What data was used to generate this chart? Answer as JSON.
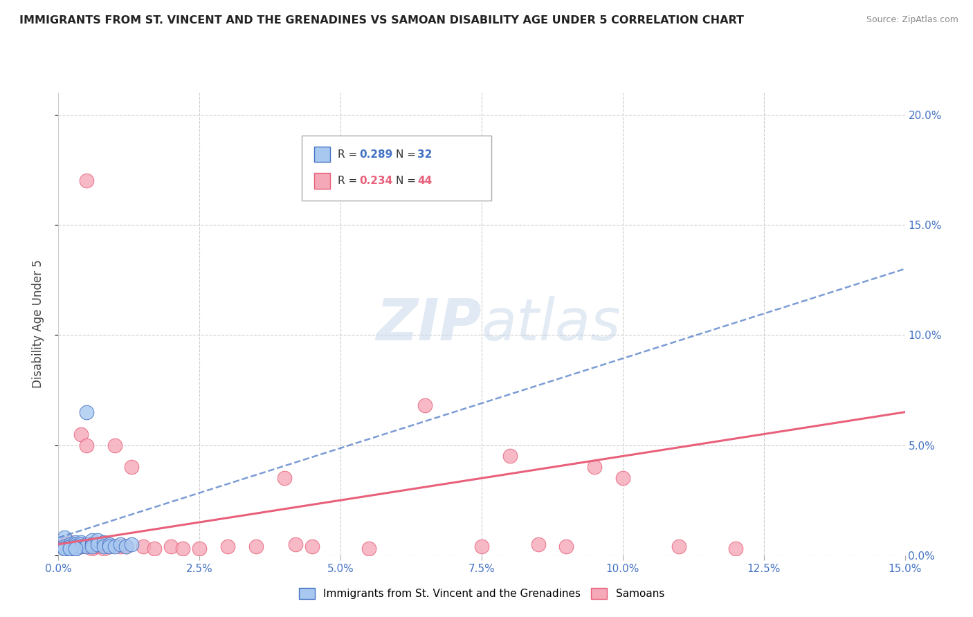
{
  "title": "IMMIGRANTS FROM ST. VINCENT AND THE GRENADINES VS SAMOAN DISABILITY AGE UNDER 5 CORRELATION CHART",
  "source": "Source: ZipAtlas.com",
  "ylabel": "Disability Age Under 5",
  "legend_r1": "R = 0.289",
  "legend_n1": "N = 32",
  "legend_r2": "R = 0.234",
  "legend_n2": "N = 44",
  "legend_label1": "Immigrants from St. Vincent and the Grenadines",
  "legend_label2": "Samoans",
  "color_blue": "#a8c8f0",
  "color_pink": "#f5a8b8",
  "color_blue_line": "#4472c4",
  "color_pink_line": "#e8607a",
  "color_blue_text": "#4472c4",
  "color_pink_text": "#e8607a",
  "blue_scatter_x": [
    0.001,
    0.001,
    0.001,
    0.002,
    0.002,
    0.002,
    0.003,
    0.003,
    0.003,
    0.003,
    0.004,
    0.004,
    0.004,
    0.005,
    0.005,
    0.005,
    0.006,
    0.006,
    0.006,
    0.007,
    0.007,
    0.008,
    0.008,
    0.009,
    0.009,
    0.01,
    0.011,
    0.012,
    0.013,
    0.001,
    0.002,
    0.003
  ],
  "blue_scatter_y": [
    0.008,
    0.004,
    0.003,
    0.005,
    0.004,
    0.003,
    0.006,
    0.005,
    0.004,
    0.003,
    0.006,
    0.005,
    0.004,
    0.065,
    0.005,
    0.004,
    0.007,
    0.005,
    0.004,
    0.007,
    0.005,
    0.006,
    0.004,
    0.005,
    0.004,
    0.004,
    0.005,
    0.004,
    0.005,
    0.003,
    0.003,
    0.003
  ],
  "pink_scatter_x": [
    0.001,
    0.001,
    0.001,
    0.002,
    0.002,
    0.003,
    0.003,
    0.004,
    0.004,
    0.005,
    0.005,
    0.006,
    0.006,
    0.007,
    0.007,
    0.008,
    0.009,
    0.01,
    0.011,
    0.013,
    0.015,
    0.017,
    0.02,
    0.022,
    0.025,
    0.03,
    0.035,
    0.04,
    0.042,
    0.045,
    0.055,
    0.065,
    0.075,
    0.08,
    0.085,
    0.09,
    0.095,
    0.1,
    0.11,
    0.12,
    0.005,
    0.008,
    0.012,
    0.002
  ],
  "pink_scatter_y": [
    0.005,
    0.004,
    0.003,
    0.006,
    0.004,
    0.005,
    0.004,
    0.055,
    0.004,
    0.05,
    0.004,
    0.004,
    0.003,
    0.005,
    0.004,
    0.003,
    0.004,
    0.05,
    0.004,
    0.04,
    0.004,
    0.003,
    0.004,
    0.003,
    0.003,
    0.004,
    0.004,
    0.035,
    0.005,
    0.004,
    0.003,
    0.068,
    0.004,
    0.045,
    0.005,
    0.004,
    0.04,
    0.035,
    0.004,
    0.003,
    0.17,
    0.005,
    0.004,
    0.004
  ],
  "blue_trend_x": [
    0.0,
    0.15
  ],
  "blue_trend_y": [
    0.008,
    0.13
  ],
  "pink_trend_x": [
    0.0,
    0.15
  ],
  "pink_trend_y": [
    0.005,
    0.065
  ],
  "xlim": [
    0.0,
    0.15
  ],
  "ylim": [
    0.0,
    0.21
  ],
  "xgrid_ticks": [
    0.0,
    0.025,
    0.05,
    0.075,
    0.1,
    0.125,
    0.15
  ],
  "ygrid_ticks": [
    0.0,
    0.05,
    0.1,
    0.15,
    0.2
  ],
  "right_ytick_labels": [
    "0.0%",
    "5.0%",
    "10.0%",
    "15.0%",
    "20.0%"
  ],
  "background_color": "#ffffff",
  "grid_color": "#cccccc"
}
